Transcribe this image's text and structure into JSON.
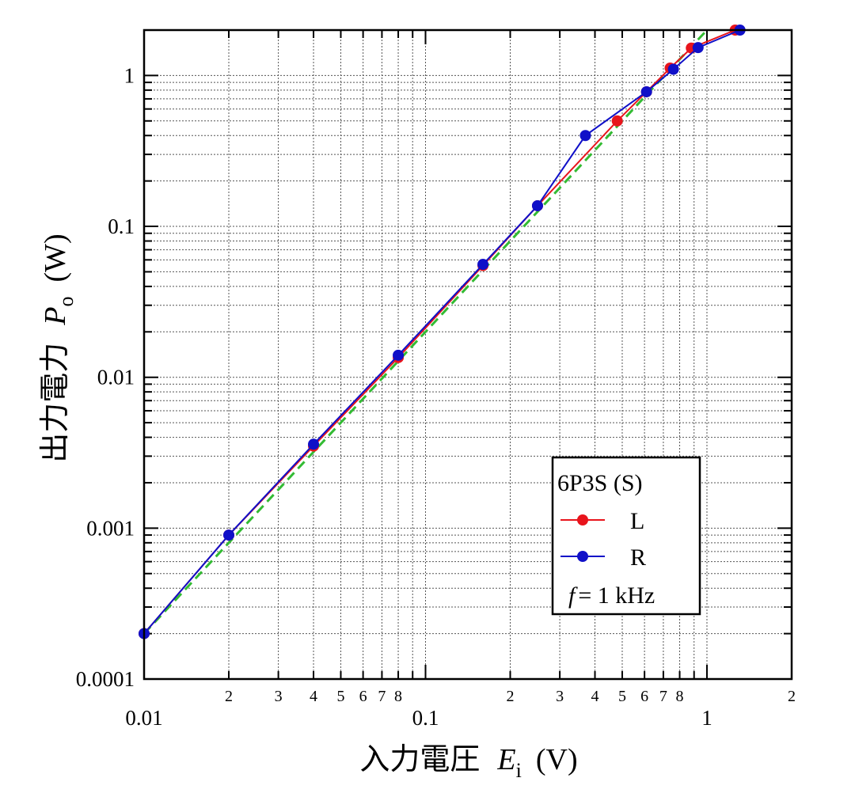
{
  "chart_data": {
    "type": "line",
    "log_x": true,
    "log_y": true,
    "grid": true,
    "xlabel": {
      "text": "入力電圧",
      "var": "E",
      "sub": "i",
      "unit": "(V)"
    },
    "ylabel": {
      "text": "出力電力",
      "var": "P",
      "sub": "o",
      "unit": "(W)"
    },
    "xlim": [
      0.01,
      2
    ],
    "ylim": [
      0.0001,
      2
    ],
    "xticks": [
      0.01,
      {
        "value": 0.02,
        "label": "2"
      },
      {
        "value": 0.03,
        "label": "3"
      },
      {
        "value": 0.04,
        "label": "4"
      },
      {
        "value": 0.05,
        "label": "5"
      },
      {
        "value": 0.06,
        "label": "6"
      },
      {
        "value": 0.07,
        "label": "7"
      },
      {
        "value": 0.08,
        "label": "8"
      },
      0.1,
      {
        "value": 0.2,
        "label": "2"
      },
      {
        "value": 0.3,
        "label": "3"
      },
      {
        "value": 0.4,
        "label": "4"
      },
      {
        "value": 0.5,
        "label": "5"
      },
      {
        "value": 0.6,
        "label": "6"
      },
      {
        "value": 0.7,
        "label": "7"
      },
      {
        "value": 0.8,
        "label": "8"
      },
      1,
      {
        "value": 2,
        "label": "2"
      }
    ],
    "xminor": [
      0.09,
      0.9
    ],
    "yticks": [
      0.0001,
      0.001,
      0.01,
      0.1,
      1
    ],
    "yminor": [
      0.0002,
      0.0003,
      0.0004,
      0.0005,
      0.0006,
      0.0007,
      0.0008,
      0.0009,
      0.002,
      0.003,
      0.004,
      0.005,
      0.006,
      0.007,
      0.008,
      0.009,
      0.02,
      0.03,
      0.04,
      0.05,
      0.06,
      0.07,
      0.08,
      0.09,
      0.2,
      0.3,
      0.4,
      0.5,
      0.6,
      0.7,
      0.8,
      0.9
    ],
    "legend_title": "6P3S (S)",
    "annotation": {
      "var": "f",
      "text": "= 1 kHz"
    },
    "series": [
      {
        "name": "L",
        "color": "#e8141c",
        "x": [
          0.01,
          0.02,
          0.04,
          0.08,
          0.16,
          0.25,
          0.48,
          0.61,
          0.74,
          0.88,
          1.26
        ],
        "values": [
          0.0002,
          0.0009,
          0.0035,
          0.0135,
          0.055,
          0.137,
          0.5,
          0.78,
          1.12,
          1.52,
          2.0
        ]
      },
      {
        "name": "R",
        "color": "#1010c8",
        "x": [
          0.01,
          0.02,
          0.04,
          0.08,
          0.16,
          0.25,
          0.37,
          0.61,
          0.76,
          0.93,
          1.31
        ],
        "values": [
          0.0002,
          0.0009,
          0.0036,
          0.014,
          0.056,
          0.137,
          0.4,
          0.78,
          1.1,
          1.53,
          2.0
        ]
      }
    ],
    "fit_line": {
      "color": "#33bb33",
      "x": [
        0.01,
        1
      ],
      "values": [
        0.0002,
        2
      ]
    }
  }
}
